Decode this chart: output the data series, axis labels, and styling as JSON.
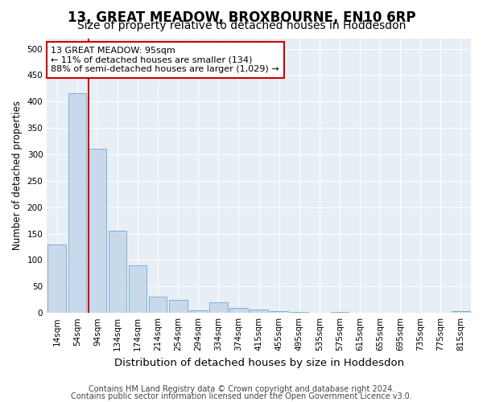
{
  "title": "13, GREAT MEADOW, BROXBOURNE, EN10 6RP",
  "subtitle": "Size of property relative to detached houses in Hoddesdon",
  "xlabel": "Distribution of detached houses by size in Hoddesdon",
  "ylabel": "Number of detached properties",
  "bar_labels": [
    "14sqm",
    "54sqm",
    "94sqm",
    "134sqm",
    "174sqm",
    "214sqm",
    "254sqm",
    "294sqm",
    "334sqm",
    "374sqm",
    "415sqm",
    "455sqm",
    "495sqm",
    "535sqm",
    "575sqm",
    "615sqm",
    "655sqm",
    "695sqm",
    "735sqm",
    "775sqm",
    "815sqm"
  ],
  "bar_values": [
    130,
    415,
    310,
    155,
    90,
    30,
    25,
    5,
    20,
    10,
    7,
    4,
    2,
    0,
    2,
    0,
    0,
    0,
    0,
    0,
    3
  ],
  "bar_color": "#c9d9ec",
  "bar_edge_color": "#7bafd4",
  "highlight_bar_index": 2,
  "highlight_line_color": "#cc0000",
  "annotation_text": "13 GREAT MEADOW: 95sqm\n← 11% of detached houses are smaller (134)\n88% of semi-detached houses are larger (1,029) →",
  "annotation_box_facecolor": "#ffffff",
  "annotation_box_edgecolor": "#cc0000",
  "ylim": [
    0,
    520
  ],
  "yticks": [
    0,
    50,
    100,
    150,
    200,
    250,
    300,
    350,
    400,
    450,
    500
  ],
  "footer1": "Contains HM Land Registry data © Crown copyright and database right 2024.",
  "footer2": "Contains public sector information licensed under the Open Government Licence v3.0.",
  "plot_bg_color": "#e8eef5",
  "grid_color": "#ffffff",
  "title_fontsize": 12,
  "subtitle_fontsize": 10,
  "xlabel_fontsize": 9.5,
  "ylabel_fontsize": 8.5,
  "tick_fontsize": 7.5,
  "footer_fontsize": 7,
  "annotation_fontsize": 8
}
